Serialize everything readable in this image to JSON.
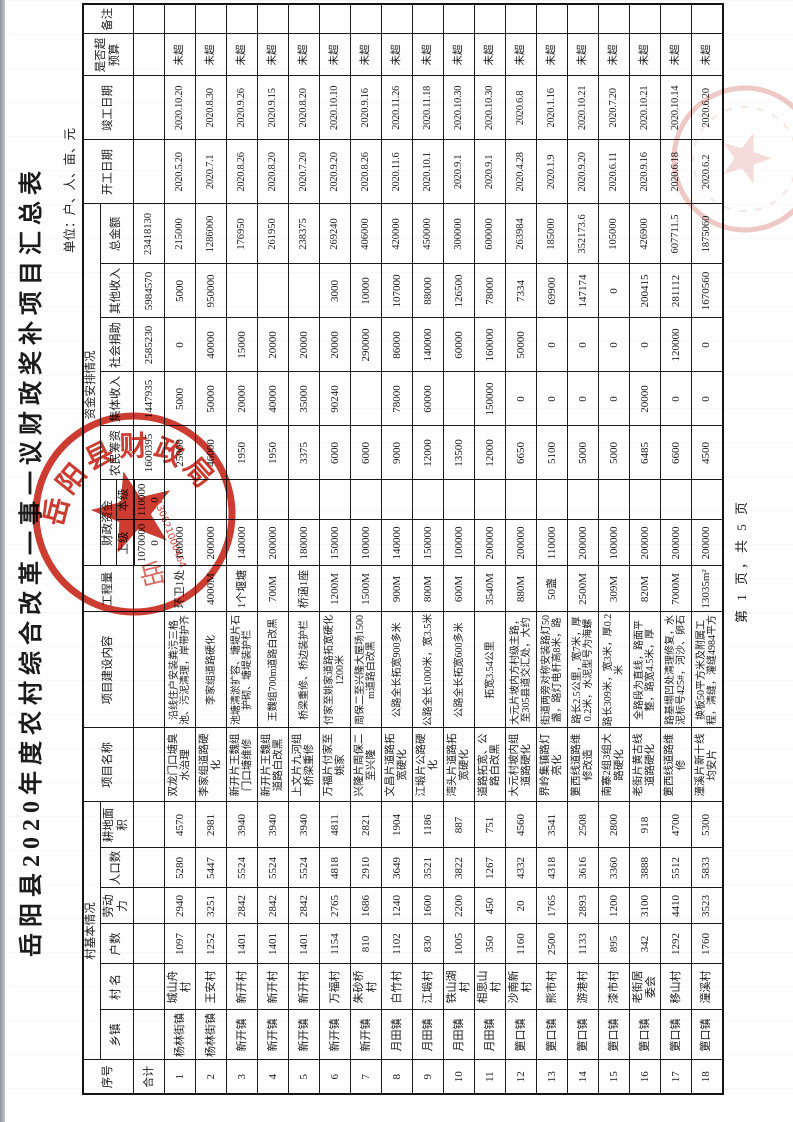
{
  "page": {
    "title": "岳阳县2020年度农村综合改革一事一议财政奖补项目汇总表",
    "unit_note": "单位：户、人、亩、元",
    "footer": "第 1 页，共 5 页",
    "seal": {
      "org_text": "岳阳县财政局",
      "code_text": "430621000464"
    },
    "colors": {
      "seal_red": "#c8271a",
      "border": "#1c1c1c"
    }
  },
  "table": {
    "header": {
      "xuhao": "序号",
      "group_village": "村基本情况",
      "xiangzhen": "乡镇",
      "cunming": "村  名",
      "hushu": "户数",
      "laodongli": "劳动力",
      "renkoushu": "人口数",
      "gengdimianji": "耕地面积",
      "xiangmu_mingcheng": "项目名称",
      "jianshe_neirong": "项目建设内容",
      "gongchengliang": "工程量",
      "group_funds": "资金安排情况",
      "caizheng_zijin": "财政资金",
      "shangji": "上级",
      "benji": "本级",
      "nongmin_chouzi": "农民筹资",
      "jiti_shouru": "集体收入",
      "shehui_juanzhu": "社会捐助",
      "qita_shouru": "其他收入",
      "zongjine": "总金额",
      "kaigong_riqi": "开工日期",
      "jungong_riqi": "竣工日期",
      "shifou_chao_yusuan": "是否超预算",
      "beizhu": "备注"
    },
    "total_row": {
      "label": "合计",
      "shangji": "10700000",
      "benji": "1100000",
      "nongmin": "1600395",
      "jiti": "1447935",
      "shehui": "2585230",
      "qita": "5984570",
      "zongjine": "23418130"
    },
    "rows": [
      [
        "1",
        "杨林街镇",
        "城山舟村",
        "1097",
        "2940",
        "5280",
        "4570",
        "双龙门口塘臭水治理",
        "沿线住户安装粪污三格池、污泥清理，岸带护齐",
        "环卫1处",
        "180000",
        "",
        "25000",
        "5000",
        "0",
        "5000",
        "215000",
        "2020.5.20",
        "2020.10.20",
        "未超",
        ""
      ],
      [
        "2",
        "杨林街镇",
        "王安村",
        "1252",
        "3251",
        "5447",
        "2981",
        "李家组道路硬化",
        "李家组道路硬化",
        "4000M",
        "200000",
        "",
        "46000",
        "50000",
        "40000",
        "950000",
        "1286000",
        "2020.7.1",
        "2020.8.30",
        "未超",
        ""
      ],
      [
        "3",
        "新开镇",
        "新开村",
        "1401",
        "2842",
        "5524",
        "3940",
        "新开片王魏组门口塘维修",
        "池塘清淤扩容、塘堤片石护砌、塘堤装护栏",
        "1个堰塘",
        "140000",
        "",
        "1950",
        "20000",
        "15000",
        "",
        "176950",
        "2020.8.26",
        "2020.9.26",
        "未超",
        ""
      ],
      [
        "4",
        "新开镇",
        "新开村",
        "1401",
        "2842",
        "5524",
        "3940",
        "新开片王魏组道路白改黑",
        "王魏组700m道路白改黑",
        "700M",
        "200000",
        "",
        "1950",
        "40000",
        "20000",
        "",
        "261950",
        "2020.8.20",
        "2020.9.15",
        "未超",
        ""
      ],
      [
        "5",
        "新开镇",
        "新开村",
        "1401",
        "2842",
        "5524",
        "3940",
        "上文片九河组桥梁重修",
        "桥梁重修、桥边装护栏",
        "桥涵1座",
        "180000",
        "",
        "3375",
        "35000",
        "20000",
        "",
        "238375",
        "2020.7.20",
        "2020.8.20",
        "未超",
        ""
      ],
      [
        "6",
        "新开镇",
        "万福村",
        "1154",
        "2765",
        "4818",
        "4811",
        "万福片付家至姚家",
        "付家至姚家道路拓宽硬化1200米",
        "1200M",
        "150000",
        "",
        "6000",
        "90240",
        "20000",
        "3000",
        "269240",
        "2020.9.20",
        "2020.10.10",
        "未超",
        ""
      ],
      [
        "7",
        "新开镇",
        "朱砂桥村",
        "810",
        "1686",
        "2910",
        "2821",
        "兴隆片周保二至兴隆",
        "周保二至兴隆大屋场1500m道路白改黑",
        "1500M",
        "100000",
        "",
        "6000",
        "",
        "290000",
        "10000",
        "406000",
        "2020.8.26",
        "2020.9.16",
        "未超",
        ""
      ],
      [
        "8",
        "月田镇",
        "白竹村",
        "1102",
        "1240",
        "3649",
        "1904",
        "文昌片道路拓宽硬化",
        "公路全长拓宽900多米",
        "900M",
        "140000",
        "",
        "9000",
        "78000",
        "86000",
        "107000",
        "420000",
        "2020.11.6",
        "2020.11.26",
        "未超",
        ""
      ],
      [
        "9",
        "月田镇",
        "江塅村",
        "830",
        "1600",
        "3521",
        "1186",
        "江塅片公路硬化",
        "公路全长1000米，宽3.5米",
        "800M",
        "150000",
        "",
        "12000",
        "60000",
        "140000",
        "88000",
        "450000",
        "2020.10.1",
        "2020.11.18",
        "未超",
        ""
      ],
      [
        "10",
        "月田镇",
        "铁山湖村",
        "1005",
        "2200",
        "3822",
        "887",
        "湾头片道路拓宽硬化",
        "公路全长拓宽600多米",
        "600M",
        "100000",
        "",
        "13500",
        "",
        "60000",
        "126500",
        "300000",
        "2020.9.1",
        "2020.10.30",
        "未超",
        ""
      ],
      [
        "11",
        "月田镇",
        "相思山村",
        "350",
        "450",
        "1267",
        "751",
        "道路拓宽、公路白改黑",
        "拓宽3.54公里",
        "3540M",
        "200000",
        "",
        "12000",
        "150000",
        "160000",
        "78000",
        "600000",
        "2020.9.1",
        "2020.10.30",
        "未超",
        ""
      ],
      [
        "12",
        "筻口镇",
        "沙南新村",
        "1160",
        "20",
        "4332",
        "4560",
        "大元村坡内组道路硬化",
        "大元片坡内方村级主路，至305县道交汇处，大约",
        "880M",
        "200000",
        "",
        "6650",
        "0",
        "50000",
        "7334",
        "263984",
        "2020.4.28",
        "2020.6.8",
        "未超",
        ""
      ],
      [
        "13",
        "筻口镇",
        "熊市村",
        "2500",
        "1765",
        "4318",
        "3541",
        "界岭集镇路灯亮化",
        "街道两旁对称安装路灯50盏，路灯电杆高8米，路",
        "50盏",
        "110000",
        "",
        "5100",
        "0",
        "0",
        "69900",
        "185000",
        "2020.1.9",
        "2020.1.16",
        "未超",
        ""
      ],
      [
        "14",
        "筻口镇",
        "游港村",
        "1133",
        "2893",
        "3616",
        "2508",
        "筻西线道路维修改造",
        "路长2.5公里，宽7米，厚0.2米，水泥型号为海螺",
        "2500M",
        "200000",
        "",
        "5000",
        "0",
        "0",
        "147174",
        "352173.6",
        "2020.9.20",
        "2020.10.21",
        "未超",
        ""
      ],
      [
        "15",
        "筻口镇",
        "漆市村",
        "895",
        "1200",
        "3360",
        "2800",
        "南寨2组3组大路硬化",
        "路长309米，宽3米，厚0.2米",
        "309M",
        "100000",
        "",
        "5000",
        "0",
        "0",
        "0",
        "105000",
        "2020.6.11",
        "2020.7.20",
        "未超",
        ""
      ],
      [
        "16",
        "筻口镇",
        "老街居委会",
        "342",
        "3100",
        "3888",
        "918",
        "老街片黄古线道路硬化",
        "全路段为直线，路面平整，路宽4.5米，厚",
        "820M",
        "200000",
        "",
        "6485",
        "20000",
        "0",
        "200415",
        "426900",
        "2020.9.16",
        "2020.10.21",
        "未超",
        ""
      ],
      [
        "17",
        "筻口镇",
        "移山村",
        "1292",
        "4410",
        "5512",
        "4700",
        "筻西线道路维修",
        "路基塌凹处清理修复，水泥标号425#，河沙、卵石",
        "7000M",
        "200000",
        "",
        "6600",
        "0",
        "120000",
        "281112",
        "607711.5",
        "2020.6.18",
        "2020.10.14",
        "未超",
        ""
      ],
      [
        "18",
        "筻口镇",
        "潼溪村",
        "1760",
        "3523",
        "5833",
        "5300",
        "潼溪片新十线均安片",
        "换板50平方米及附属工程，清缝，灌缝4984平方",
        "13035m²",
        "200000",
        "",
        "4500",
        "0",
        "0",
        "1670560",
        "1875060",
        "2020.6.2",
        "2020.6.20",
        "未超",
        ""
      ]
    ]
  }
}
